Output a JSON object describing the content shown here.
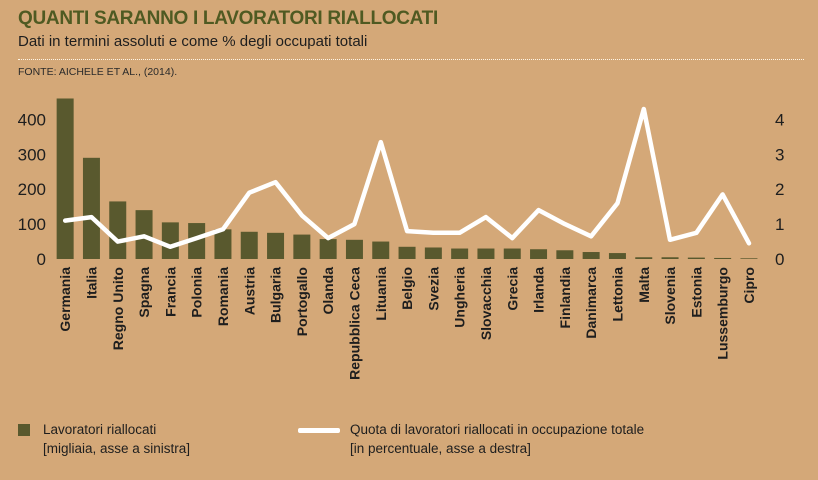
{
  "header": {
    "title": "QUANTI SARANNO I LAVORATORI RIALLOCATI",
    "subtitle": "Dati in termini assoluti e come % degli occupati totali",
    "source": "FONTE: AICHELE ET AL., (2014)."
  },
  "legend": {
    "bars_line1": "Lavoratori riallocati",
    "bars_line2": "[migliaia, asse a sinistra]",
    "line_line1": "Quota di lavoratori riallocati in occupazione totale",
    "line_line2": "[in percentuale, asse a destra]"
  },
  "colors": {
    "background": "#d4a878",
    "bar": "#59592e",
    "line": "#ffffff",
    "title": "#4f5a22"
  },
  "chart_data": {
    "type": "bar",
    "categories": [
      "Germania",
      "Italia",
      "Regno Unito",
      "Spagna",
      "Francia",
      "Polonia",
      "Romania",
      "Austria",
      "Bulgaria",
      "Portogallo",
      "Olanda",
      "Repubblica Ceca",
      "Lituania",
      "Belgio",
      "Svezia",
      "Ungheria",
      "Slovacchia",
      "Grecia",
      "Irlanda",
      "Finlandia",
      "Danimarca",
      "Lettonia",
      "Malta",
      "Slovenia",
      "Estonia",
      "Lussemburgo",
      "Cipro"
    ],
    "series": [
      {
        "type": "bar",
        "axis": "left",
        "values": [
          460,
          290,
          165,
          140,
          105,
          103,
          85,
          78,
          75,
          70,
          57,
          55,
          50,
          35,
          33,
          30,
          30,
          30,
          28,
          25,
          20,
          17,
          5,
          5,
          4,
          3,
          2
        ]
      },
      {
        "type": "line",
        "axis": "right",
        "values": [
          1.1,
          1.2,
          0.5,
          0.65,
          0.35,
          0.6,
          0.85,
          1.9,
          2.2,
          1.25,
          0.6,
          1.0,
          3.35,
          0.8,
          0.75,
          0.75,
          1.2,
          0.6,
          1.4,
          1.0,
          0.65,
          1.6,
          4.3,
          0.55,
          0.75,
          1.85,
          0.45
        ]
      }
    ],
    "y_left": {
      "ticks": [
        0,
        100,
        200,
        300,
        400
      ],
      "ylim": [
        0,
        470
      ]
    },
    "y_right": {
      "ticks": [
        0,
        1,
        2,
        3,
        4
      ],
      "ylim": [
        0,
        4.7
      ]
    },
    "grid": false,
    "legend_position": "bottom"
  }
}
